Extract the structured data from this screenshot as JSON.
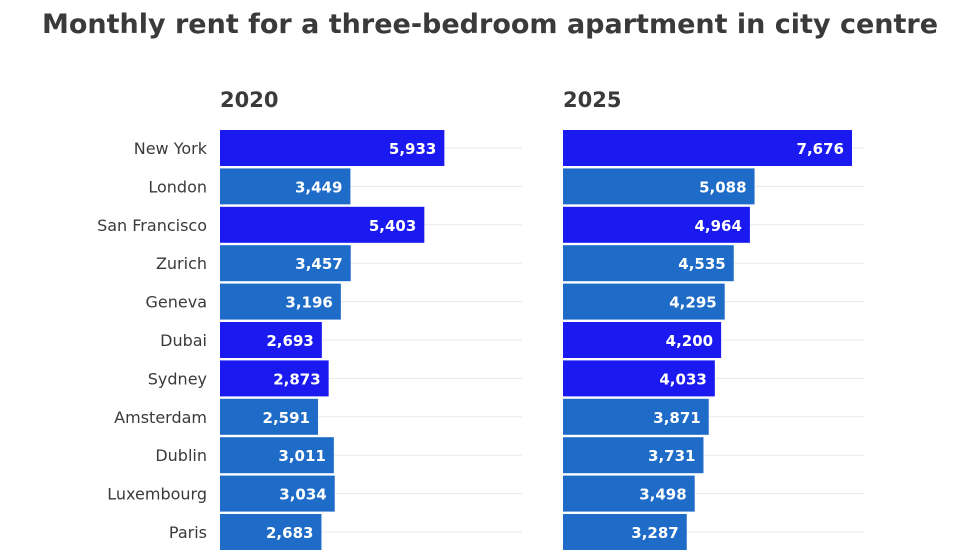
{
  "colors": {
    "highlight": "#1a1af0",
    "default": "#1f6cc8",
    "gridline": "#e8e8e8",
    "label_text": "#3a3a3a",
    "value_text": "#ffffff"
  },
  "chart_data": [
    {
      "type": "bar",
      "orientation": "horizontal",
      "title": "Monthly rent for a three-bedroom apartment in city centre",
      "panel_title": "2020",
      "categories": [
        "New York",
        "London",
        "San Francisco",
        "Zurich",
        "Geneva",
        "Dubai",
        "Sydney",
        "Amsterdam",
        "Dublin",
        "Luxembourg",
        "Paris"
      ],
      "values": [
        5933,
        3449,
        5403,
        3457,
        3196,
        2693,
        2873,
        2591,
        3011,
        3034,
        2683
      ],
      "value_labels": [
        "5,933",
        "3,449",
        "5,403",
        "3,457",
        "3,196",
        "2,693",
        "2,873",
        "2,591",
        "3,011",
        "3,034",
        "2,683"
      ],
      "highlighted": [
        true,
        false,
        true,
        false,
        false,
        true,
        true,
        false,
        false,
        false,
        false
      ],
      "xlim": [
        0,
        8000
      ],
      "grid": true
    },
    {
      "type": "bar",
      "orientation": "horizontal",
      "panel_title": "2025",
      "categories": [
        "New York",
        "London",
        "San Francisco",
        "Zurich",
        "Geneva",
        "Dubai",
        "Sydney",
        "Amsterdam",
        "Dublin",
        "Luxembourg",
        "Paris"
      ],
      "values": [
        7676,
        5088,
        4964,
        4535,
        4295,
        4200,
        4033,
        3871,
        3731,
        3498,
        3287
      ],
      "value_labels": [
        "7,676",
        "5,088",
        "4,964",
        "4,535",
        "4,295",
        "4,200",
        "4,033",
        "3,871",
        "3,731",
        "3,498",
        "3,287"
      ],
      "highlighted": [
        true,
        false,
        true,
        false,
        false,
        true,
        true,
        false,
        false,
        false,
        false
      ],
      "xlim": [
        0,
        8000
      ],
      "grid": true
    }
  ]
}
